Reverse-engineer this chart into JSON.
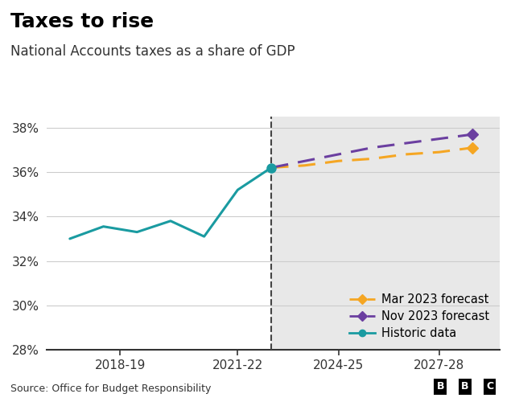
{
  "title": "Taxes to rise",
  "subtitle": "National Accounts taxes as a share of GDP",
  "source": "Source: Office for Budget Responsibility",
  "ylim": [
    0.28,
    0.385
  ],
  "yticks": [
    0.28,
    0.3,
    0.32,
    0.34,
    0.36,
    0.38
  ],
  "xtick_labels": [
    "2018-19",
    "2021-22",
    "2024-25",
    "2027-28"
  ],
  "historic_x": [
    2016,
    2017,
    2018,
    2019,
    2020,
    2021,
    2022
  ],
  "historic_y": [
    0.33,
    0.3355,
    0.333,
    0.338,
    0.331,
    0.352,
    0.362
  ],
  "mar2023_x": [
    2022,
    2023,
    2024,
    2025,
    2026,
    2027,
    2028
  ],
  "mar2023_y": [
    0.362,
    0.363,
    0.365,
    0.366,
    0.368,
    0.369,
    0.371
  ],
  "nov2023_x": [
    2022,
    2023,
    2024,
    2025,
    2026,
    2027,
    2028
  ],
  "nov2023_y": [
    0.362,
    0.365,
    0.368,
    0.371,
    0.373,
    0.375,
    0.377
  ],
  "historic_color": "#1a9ba1",
  "mar2023_color": "#f5a623",
  "nov2023_color": "#6b3fa0",
  "forecast_bg_color": "#e8e8e8",
  "dashed_line_x": 2022,
  "xlim_left": 2015.3,
  "xlim_right": 2028.8,
  "background_color": "#ffffff",
  "title_fontsize": 18,
  "subtitle_fontsize": 12,
  "tick_fontsize": 11,
  "legend_fontsize": 10.5
}
